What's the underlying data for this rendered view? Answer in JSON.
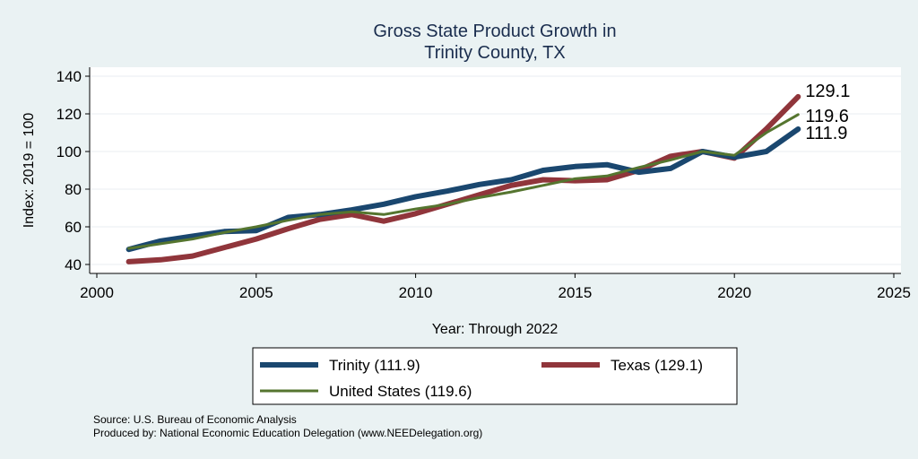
{
  "colors": {
    "background": "#eaf2f3",
    "plot_background": "#ffffff",
    "grid": "#e9eef0",
    "trinity": "#1a476f",
    "texas": "#90353b",
    "united_states": "#55752f"
  },
  "notes": {
    "source": "Source: U.S. Bureau of Economic Analysis",
    "produced_by": "Produced by: National Economic Education Delegation (www.NEEDelegation.org)"
  },
  "chart_data": {
    "type": "line",
    "title": [
      "Gross State Product Growth in",
      "Trinity County, TX"
    ],
    "xlabel": "Year: Through 2022",
    "ylabel": "Index: 2019 = 100",
    "xlim": [
      2000,
      2025
    ],
    "ylim": [
      40,
      140
    ],
    "xticks": [
      "2000",
      "2005",
      "2010",
      "2015",
      "2020",
      "2025"
    ],
    "yticks": [
      "40",
      "60",
      "80",
      "100",
      "120",
      "140"
    ],
    "grid": true,
    "legend_position": "bottom",
    "x": [
      2001,
      2002,
      2003,
      2004,
      2005,
      2006,
      2007,
      2008,
      2009,
      2010,
      2011,
      2012,
      2013,
      2014,
      2015,
      2016,
      2017,
      2018,
      2019,
      2020,
      2021,
      2022
    ],
    "series": [
      {
        "name": "Trinity",
        "legend_label": "Trinity  (111.9)",
        "end_label": "111.9",
        "color": "#1a476f",
        "width": 6,
        "values": [
          48.0,
          52.5,
          55.0,
          57.5,
          58.0,
          65.0,
          66.5,
          69.0,
          72.0,
          76.0,
          79.0,
          82.5,
          85.0,
          90.0,
          92.0,
          93.0,
          89.0,
          91.0,
          100.0,
          97.0,
          100.0,
          111.9
        ]
      },
      {
        "name": "Texas",
        "legend_label": "Texas (129.1)",
        "end_label": "129.1",
        "color": "#90353b",
        "width": 6,
        "values": [
          41.5,
          42.5,
          44.5,
          49.0,
          53.5,
          59.0,
          64.0,
          66.5,
          63.0,
          67.0,
          72.0,
          77.0,
          82.0,
          85.0,
          84.5,
          85.0,
          90.0,
          97.5,
          100.0,
          96.5,
          112.0,
          129.1
        ]
      },
      {
        "name": "United States",
        "legend_label": "United States (119.6)",
        "end_label": "119.6",
        "color": "#55752f",
        "width": 3,
        "values": [
          48.5,
          51.0,
          53.5,
          57.0,
          60.0,
          63.5,
          66.5,
          68.0,
          66.5,
          69.5,
          72.0,
          75.5,
          78.5,
          82.0,
          85.5,
          87.0,
          91.5,
          95.5,
          100.0,
          98.0,
          110.0,
          119.6
        ]
      }
    ]
  }
}
